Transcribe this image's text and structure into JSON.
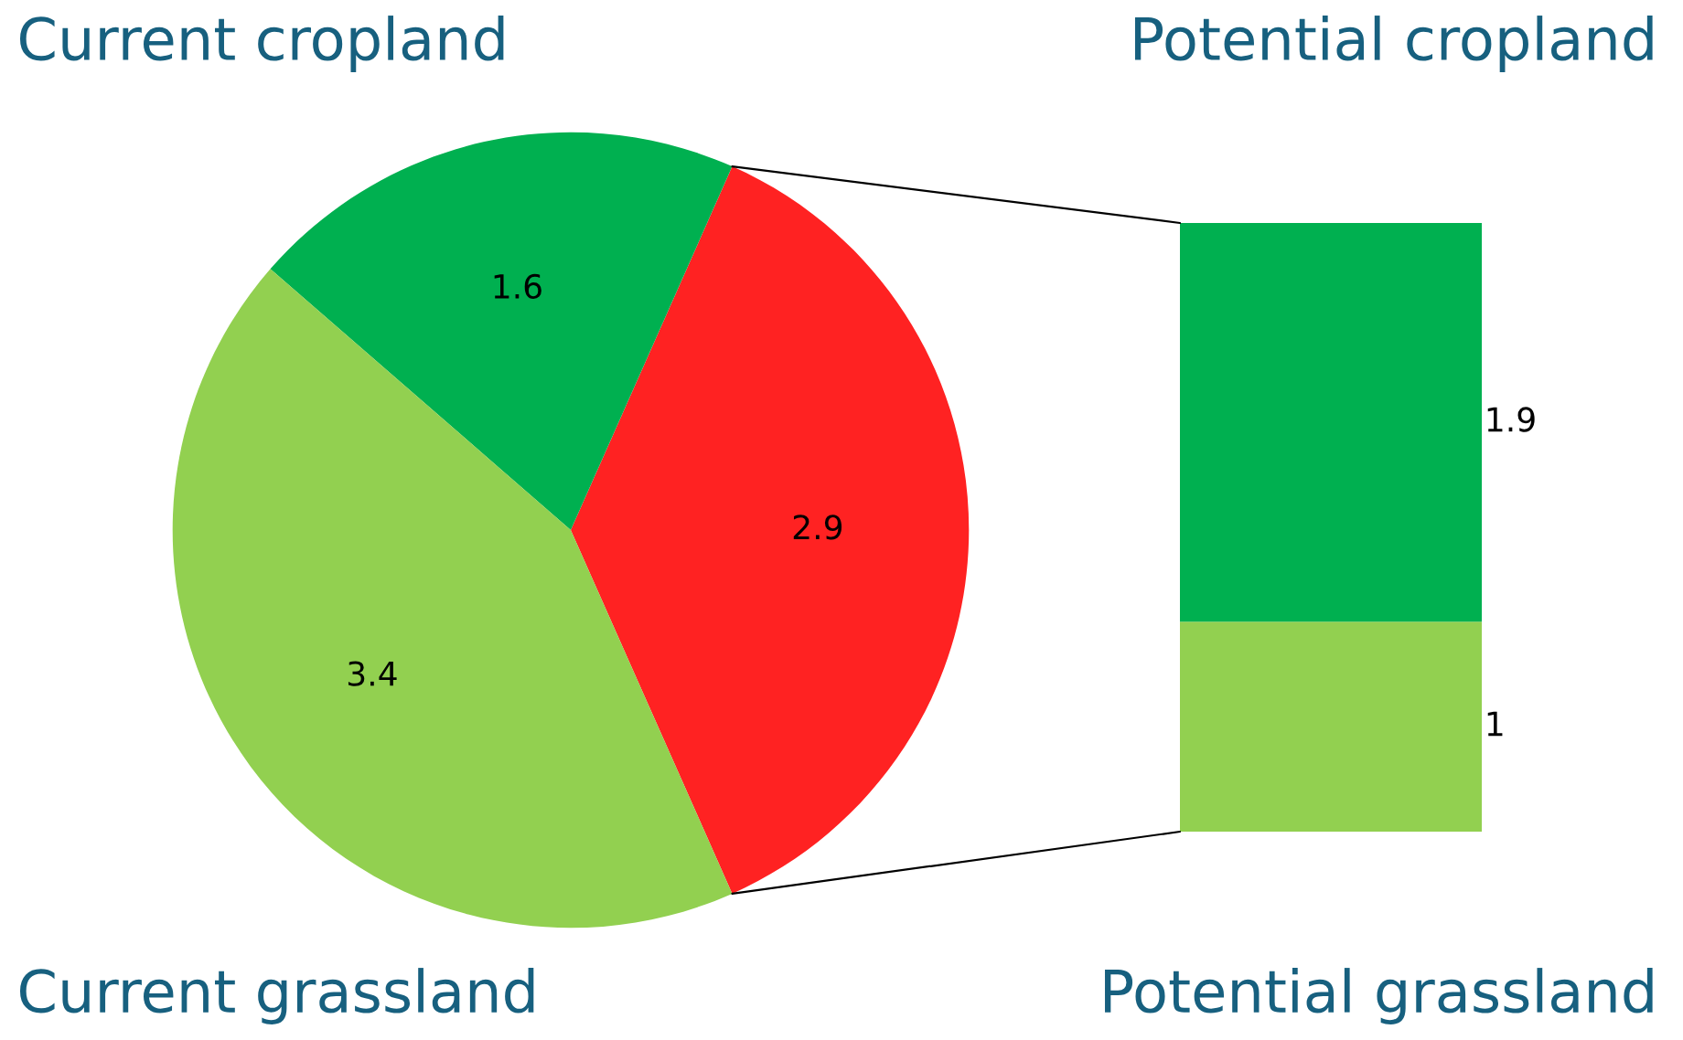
{
  "chart_data": [
    {
      "type": "pie",
      "categories": [
        null,
        "Current cropland",
        "Current grassland"
      ],
      "values": [
        2.9,
        1.6,
        3.4
      ],
      "colors": [
        "#ff2222",
        "#00b050",
        "#92d050"
      ],
      "data_labels": true
    },
    {
      "type": "bar",
      "stacked": true,
      "categories": [
        null
      ],
      "data_labels": true,
      "series": [
        {
          "name": "Potential grassland",
          "color": "#92d050",
          "values": [
            1
          ]
        },
        {
          "name": "Potential cropland",
          "color": "#00b050",
          "values": [
            1.9
          ]
        }
      ]
    }
  ]
}
